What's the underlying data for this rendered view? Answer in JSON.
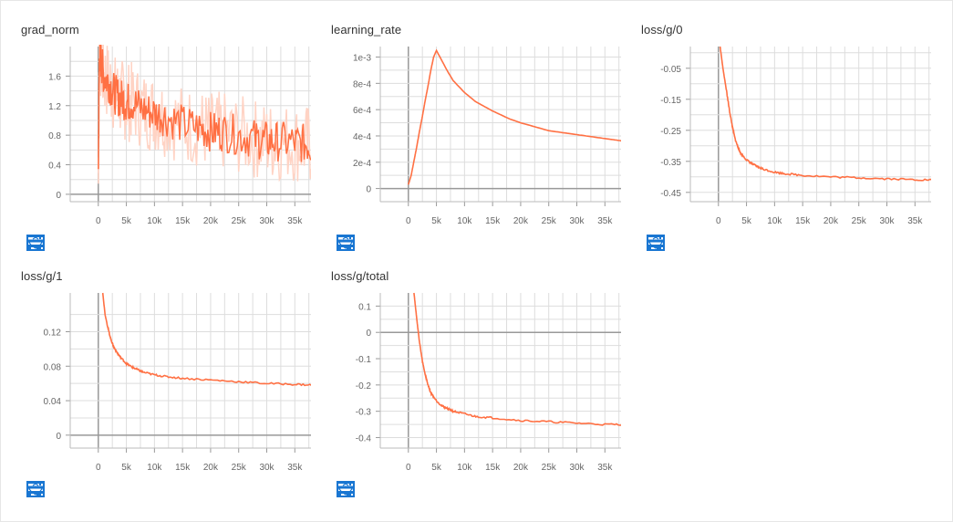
{
  "colors": {
    "line": "#ff7043",
    "line_light": "#ffd3c4",
    "grid": "#dddddd",
    "axis": "#999999",
    "icon": "#1976d2"
  },
  "icons": [
    "fullscreen-icon",
    "toggle-log-icon",
    "fit-domain-icon"
  ],
  "chart_data": [
    {
      "type": "line",
      "title": "grad_norm",
      "xticks": [
        "0",
        "5k",
        "10k",
        "15k",
        "20k",
        "25k",
        "30k",
        "35k"
      ],
      "xlim": [
        -5000,
        39500
      ],
      "yticks": [
        "0",
        "0.4",
        "0.8",
        "1.2",
        "1.6"
      ],
      "ylim": [
        -0.1,
        2.0
      ],
      "noisy": true,
      "series": [
        {
          "x": [
            0,
            200,
            500,
            1000,
            2000,
            3000,
            4000,
            5000,
            6000,
            8000,
            10000,
            12000,
            15000,
            18000,
            20000,
            22000,
            25000,
            28000,
            30000,
            32000,
            35000,
            37000,
            38500,
            39000
          ],
          "y": [
            0.3,
            1.9,
            1.8,
            1.6,
            1.5,
            1.35,
            1.3,
            1.25,
            1.25,
            1.15,
            1.1,
            1.05,
            0.95,
            0.9,
            0.85,
            0.85,
            0.8,
            0.75,
            0.72,
            0.72,
            0.7,
            0.68,
            0.65,
            0.63
          ]
        }
      ]
    },
    {
      "type": "line",
      "title": "learning_rate",
      "xticks": [
        "0",
        "5k",
        "10k",
        "15k",
        "20k",
        "25k",
        "30k",
        "35k"
      ],
      "xlim": [
        -5000,
        39500
      ],
      "yticks": [
        "0",
        "2e-4",
        "4e-4",
        "6e-4",
        "8e-4",
        "1e-3"
      ],
      "ylim": [
        -0.0001,
        0.00108
      ],
      "series": [
        {
          "x": [
            0,
            500,
            1000,
            1500,
            2000,
            2500,
            3000,
            3500,
            4000,
            4500,
            5000,
            6000,
            7000,
            8000,
            10000,
            12000,
            15000,
            18000,
            20000,
            25000,
            30000,
            35000,
            38500
          ],
          "y": [
            3e-05,
            0.0001,
            0.00021,
            0.00032,
            0.00044,
            0.00055,
            0.00067,
            0.00078,
            0.0009,
            0.001,
            0.00105,
            0.00097,
            0.00089,
            0.00082,
            0.00073,
            0.00066,
            0.00059,
            0.00053,
            0.0005,
            0.00044,
            0.00041,
            0.00038,
            0.00036
          ]
        }
      ]
    },
    {
      "type": "line",
      "title": "loss/g/0",
      "xticks": [
        "0",
        "5k",
        "10k",
        "15k",
        "20k",
        "25k",
        "30k",
        "35k"
      ],
      "xlim": [
        -5000,
        39500
      ],
      "yticks": [
        "-0.45",
        "-0.35",
        "-0.25",
        "-0.15",
        "-0.05"
      ],
      "ylim": [
        -0.48,
        0.02
      ],
      "noisy_small": true,
      "series": [
        {
          "x": [
            300,
            800,
            1500,
            2000,
            2500,
            3000,
            3500,
            4000,
            5000,
            6000,
            7000,
            8000,
            10000,
            12000,
            15000,
            20000,
            25000,
            30000,
            35000,
            38500
          ],
          "y": [
            0.02,
            -0.05,
            -0.13,
            -0.19,
            -0.24,
            -0.28,
            -0.305,
            -0.325,
            -0.345,
            -0.358,
            -0.368,
            -0.375,
            -0.385,
            -0.39,
            -0.395,
            -0.4,
            -0.403,
            -0.406,
            -0.409,
            -0.41
          ]
        }
      ]
    },
    {
      "type": "line",
      "title": "loss/g/1",
      "xticks": [
        "0",
        "5k",
        "10k",
        "15k",
        "20k",
        "25k",
        "30k",
        "35k"
      ],
      "xlim": [
        -5000,
        39500
      ],
      "yticks": [
        "0",
        "0.04",
        "0.08",
        "0.12"
      ],
      "ylim": [
        -0.015,
        0.165
      ],
      "noisy_small": true,
      "series": [
        {
          "x": [
            800,
            1200,
            1700,
            2200,
            2700,
            3300,
            4000,
            5000,
            6000,
            7000,
            8000,
            10000,
            12000,
            15000,
            20000,
            25000,
            30000,
            35000,
            38500
          ],
          "y": [
            0.165,
            0.14,
            0.125,
            0.112,
            0.103,
            0.096,
            0.09,
            0.083,
            0.079,
            0.076,
            0.073,
            0.07,
            0.068,
            0.066,
            0.064,
            0.062,
            0.06,
            0.059,
            0.058
          ]
        }
      ]
    },
    {
      "type": "line",
      "title": "loss/g/total",
      "xticks": [
        "0",
        "5k",
        "10k",
        "15k",
        "20k",
        "25k",
        "30k",
        "35k"
      ],
      "xlim": [
        -5000,
        39500
      ],
      "yticks": [
        "-0.4",
        "-0.3",
        "-0.2",
        "-0.1",
        "0",
        "0.1"
      ],
      "ylim": [
        -0.44,
        0.15
      ],
      "noisy_small": true,
      "series": [
        {
          "x": [
            1000,
            1500,
            2000,
            2500,
            3000,
            3500,
            4000,
            5000,
            6000,
            7000,
            8000,
            10000,
            12000,
            15000,
            20000,
            25000,
            30000,
            35000,
            38500
          ],
          "y": [
            0.15,
            0.05,
            -0.04,
            -0.11,
            -0.16,
            -0.2,
            -0.23,
            -0.26,
            -0.28,
            -0.29,
            -0.3,
            -0.31,
            -0.32,
            -0.325,
            -0.335,
            -0.34,
            -0.345,
            -0.35,
            -0.35
          ]
        }
      ]
    }
  ]
}
